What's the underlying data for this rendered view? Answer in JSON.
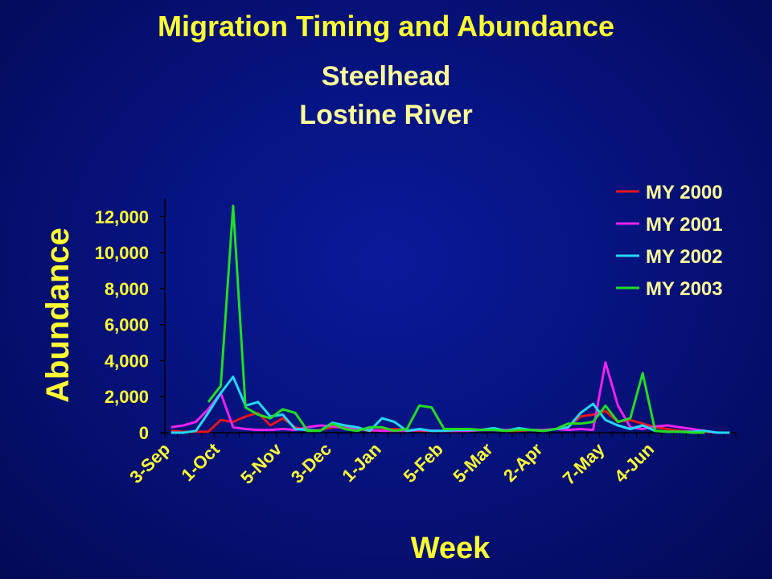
{
  "chart_data": {
    "type": "line",
    "title": "Migration Timing and Abundance",
    "subtitle_line1": "Steelhead",
    "subtitle_line2": "Lostine River",
    "xlabel": "Week",
    "ylabel": "Abundance",
    "ylim": [
      0,
      13000
    ],
    "yticks": [
      0,
      2000,
      4000,
      6000,
      8000,
      10000,
      12000
    ],
    "ytick_labels": [
      "0",
      "2,000",
      "4,000",
      "6,000",
      "8,000",
      "10,000",
      "12,000"
    ],
    "xtick_labels": [
      "3-Sep",
      "1-Oct",
      "5-Nov",
      "3-Dec",
      "1-Jan",
      "5-Feb",
      "5-Mar",
      "2-Apr",
      "7-May",
      "4-Jun"
    ],
    "xtick_weeks": [
      1,
      5,
      10,
      14,
      18,
      23,
      27,
      31,
      36,
      40
    ],
    "x_weeks": [
      1,
      2,
      3,
      4,
      5,
      6,
      7,
      8,
      9,
      10,
      11,
      12,
      13,
      14,
      15,
      16,
      17,
      18,
      19,
      20,
      21,
      22,
      23,
      24,
      25,
      26,
      27,
      28,
      29,
      30,
      31,
      32,
      33,
      34,
      35,
      36,
      37,
      38,
      39,
      40,
      41,
      42,
      43,
      44,
      45,
      46
    ],
    "legend_position": "top-right",
    "grid": false,
    "series": [
      {
        "name": "MY 2000",
        "color": "#e8141e",
        "values": [
          100,
          50,
          50,
          50,
          700,
          600,
          900,
          1100,
          400,
          800,
          300,
          100,
          150,
          300,
          300,
          200,
          100,
          150,
          200,
          150,
          100,
          100,
          100,
          100,
          100,
          150,
          150,
          100,
          100,
          150,
          100,
          200,
          300,
          900,
          1000,
          1200,
          600,
          700,
          500,
          300,
          200,
          100,
          50,
          50,
          0,
          0
        ]
      },
      {
        "name": "MY 2001",
        "color": "#ee22ee",
        "values": [
          300,
          400,
          600,
          1300,
          2200,
          300,
          200,
          150,
          150,
          200,
          150,
          300,
          400,
          350,
          250,
          200,
          150,
          100,
          100,
          100,
          150,
          100,
          100,
          100,
          100,
          150,
          150,
          150,
          150,
          150,
          150,
          200,
          150,
          200,
          150,
          3900,
          1500,
          300,
          200,
          350,
          400,
          300,
          200,
          100,
          0,
          0
        ]
      },
      {
        "name": "MY 2002",
        "color": "#22d8f8",
        "values": [
          0,
          0,
          100,
          1100,
          2200,
          3100,
          1500,
          1700,
          900,
          1000,
          200,
          150,
          100,
          550,
          400,
          300,
          100,
          800,
          600,
          100,
          200,
          100,
          100,
          150,
          150,
          150,
          250,
          100,
          250,
          150,
          100,
          200,
          300,
          1100,
          1600,
          700,
          400,
          200,
          400,
          100,
          50,
          50,
          50,
          100,
          0,
          0
        ]
      },
      {
        "name": "MY 2003",
        "color": "#22dd22",
        "values": [
          null,
          null,
          null,
          1700,
          2600,
          12600,
          1400,
          1000,
          800,
          1300,
          1100,
          100,
          100,
          500,
          200,
          100,
          300,
          300,
          100,
          200,
          1500,
          1400,
          200,
          200,
          200,
          150,
          150,
          100,
          150,
          150,
          100,
          200,
          500,
          500,
          600,
          1500,
          600,
          800,
          3300,
          100,
          50,
          50,
          0,
          0,
          null,
          null
        ]
      }
    ]
  }
}
